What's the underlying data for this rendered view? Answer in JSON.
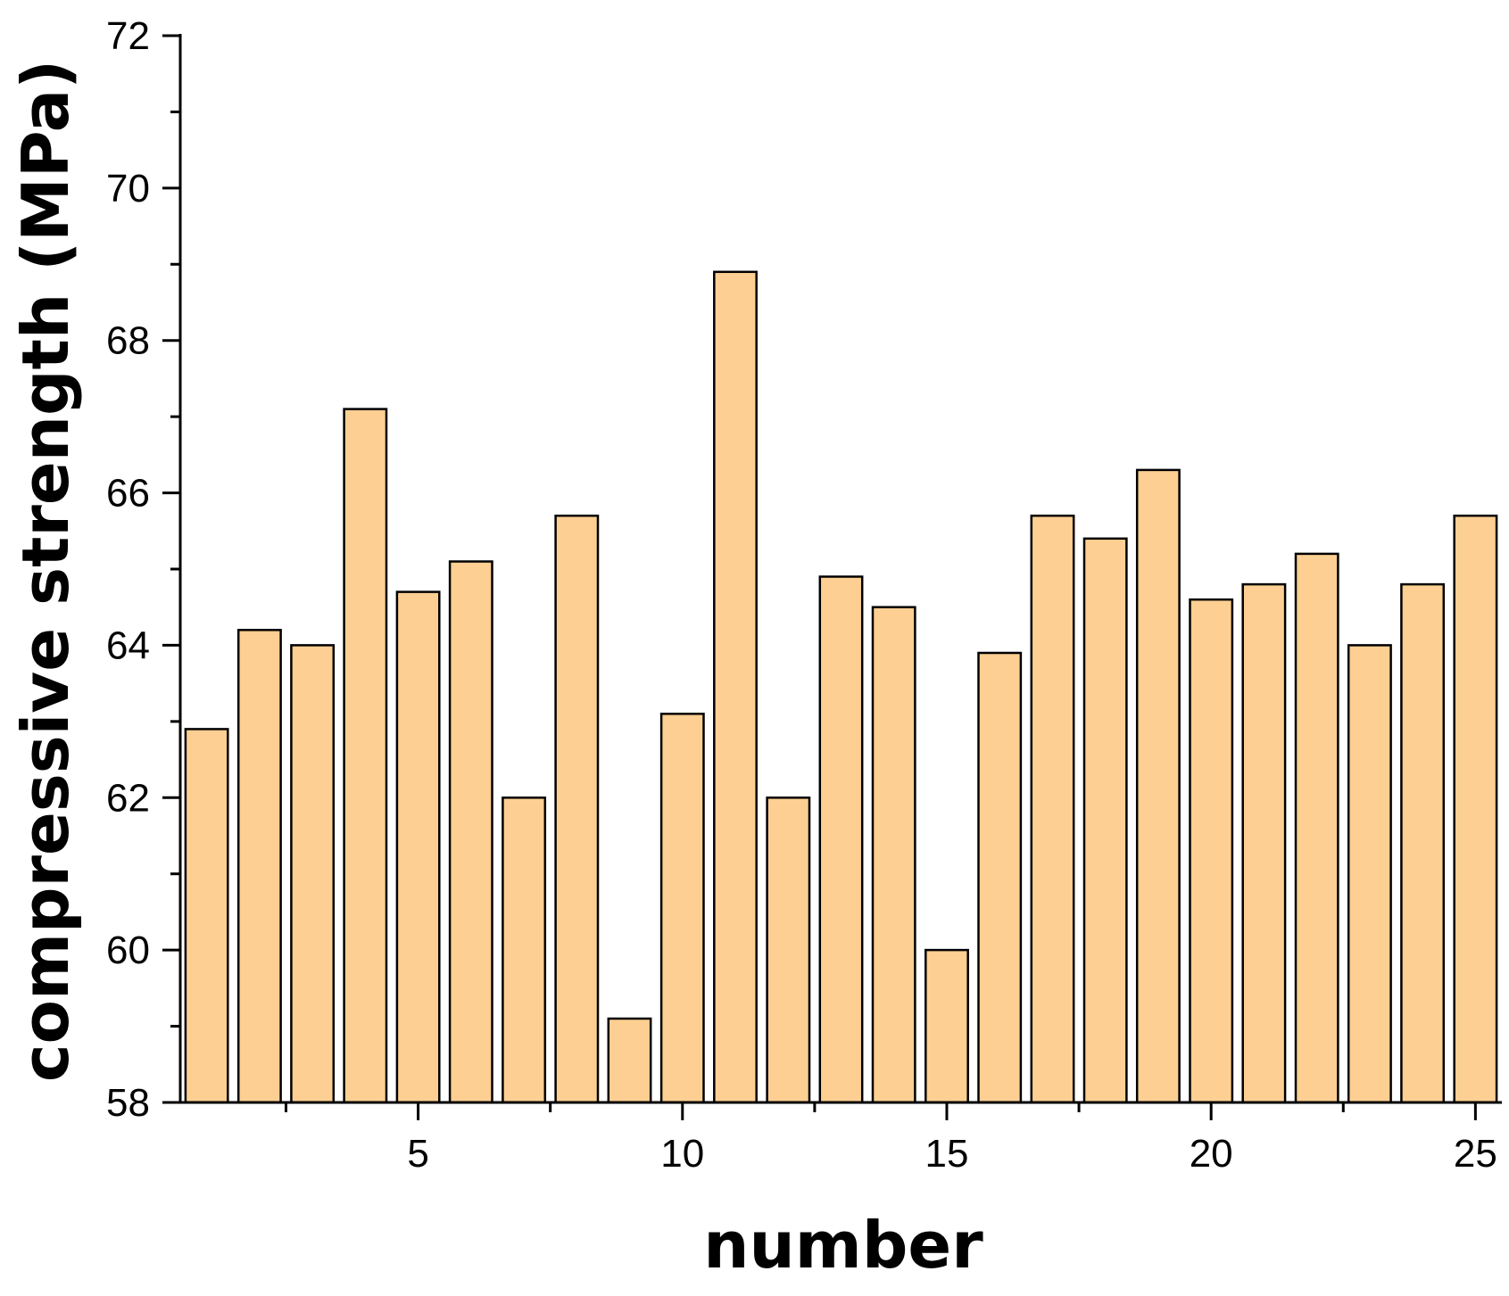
{
  "chart_data": {
    "type": "bar",
    "title": "",
    "xlabel": "number",
    "ylabel": "compressive strength (MPa)",
    "x": [
      1,
      2,
      3,
      4,
      5,
      6,
      7,
      8,
      9,
      10,
      11,
      12,
      13,
      14,
      15,
      16,
      17,
      18,
      19,
      20,
      21,
      22,
      23,
      24,
      25
    ],
    "values": [
      62.9,
      64.2,
      64.0,
      67.1,
      64.7,
      65.1,
      62.0,
      65.7,
      59.1,
      63.1,
      68.9,
      62.0,
      64.9,
      64.5,
      60.0,
      63.9,
      65.7,
      65.4,
      66.3,
      64.6,
      64.8,
      65.2,
      64.0,
      64.8,
      65.7
    ],
    "xlim": [
      0.5,
      25.5
    ],
    "ylim": [
      58,
      72
    ],
    "x_major_ticks": [
      5,
      10,
      15,
      20,
      25
    ],
    "x_tick_labels": [
      "5",
      "10",
      "15",
      "20",
      "25"
    ],
    "y_major_ticks": [
      58,
      60,
      62,
      64,
      66,
      68,
      70,
      72
    ],
    "y_tick_labels": [
      "58",
      "60",
      "62",
      "64",
      "66",
      "68",
      "70",
      "72"
    ],
    "grid": false,
    "bar_color": "#FDCF92",
    "edge_color": "#000000"
  }
}
